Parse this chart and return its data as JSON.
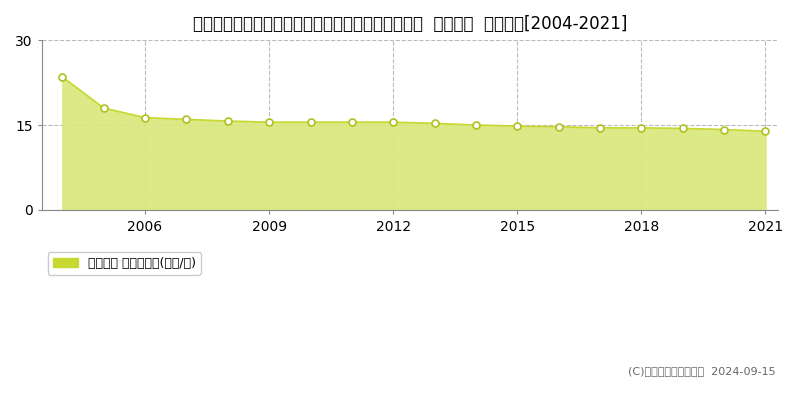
{
  "title": "愛知県知多郡南知多町大字内海字亥新田１１９番外  地価公示  地価推移[2004-2021]",
  "years": [
    2004,
    2005,
    2006,
    2007,
    2008,
    2009,
    2010,
    2011,
    2012,
    2013,
    2014,
    2015,
    2016,
    2017,
    2018,
    2019,
    2020,
    2021
  ],
  "values": [
    23.5,
    18.0,
    16.3,
    16.0,
    15.7,
    15.5,
    15.5,
    15.5,
    15.5,
    15.3,
    15.0,
    14.8,
    14.7,
    14.5,
    14.5,
    14.4,
    14.2,
    13.9
  ],
  "ylim": [
    0,
    30
  ],
  "yticks": [
    0,
    15,
    30
  ],
  "xticks": [
    2006,
    2009,
    2012,
    2015,
    2018,
    2021
  ],
  "line_color": "#c8d832",
  "fill_color": "#d8e87a",
  "fill_alpha": 0.9,
  "marker_color": "white",
  "marker_edge_color": "#b0c020",
  "grid_color": "#bbbbbb",
  "background_color": "#ffffff",
  "legend_label": "地価公示 平均坪単価(万円/坪)",
  "legend_square_color": "#c8d832",
  "copyright_text": "(C)土地価格ドットコム  2024-09-15",
  "title_fontsize": 12,
  "axis_fontsize": 10,
  "legend_fontsize": 9,
  "copyright_fontsize": 8
}
